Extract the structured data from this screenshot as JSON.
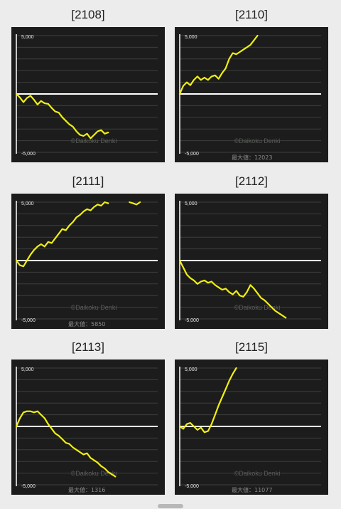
{
  "watermark": "©Daikoku Denki",
  "max_label_prefix": "最大値：",
  "colors": {
    "background": "#1b1c1b",
    "grid": "#3c3f3c",
    "zero_line": "#ffffff",
    "line": "#f1ee13",
    "axis_text": "#e8e8e8"
  },
  "chart_data": [
    {
      "type": "line",
      "title": "[2108]",
      "ylim": [
        -5000,
        5000
      ],
      "yticks": [
        "5,000",
        "-5,000"
      ],
      "max_value": "",
      "series": [
        {
          "x": [
            0,
            5,
            10,
            15,
            20,
            25,
            30,
            35,
            40,
            45,
            50,
            55,
            60,
            65,
            70,
            75,
            80,
            85,
            90,
            95,
            100,
            105,
            110,
            115,
            120,
            125,
            130
          ],
          "values": [
            0,
            -300,
            -700,
            -350,
            -150,
            -500,
            -900,
            -600,
            -800,
            -850,
            -1200,
            -1500,
            -1600,
            -2000,
            -2300,
            -2600,
            -2800,
            -3200,
            -3500,
            -3600,
            -3400,
            -3800,
            -3500,
            -3200,
            -3100,
            -3400,
            -3300
          ]
        }
      ]
    },
    {
      "type": "line",
      "title": "[2110]",
      "ylim": [
        -5000,
        5000
      ],
      "yticks": [
        "5,000",
        "-5,000"
      ],
      "max_value": "12023",
      "series": [
        {
          "x": [
            0,
            5,
            10,
            15,
            20,
            25,
            30,
            35,
            40,
            45,
            50,
            55,
            60,
            65,
            70,
            75,
            80,
            85,
            90,
            95,
            100,
            105,
            110
          ],
          "values": [
            0,
            700,
            1000,
            750,
            1200,
            1500,
            1200,
            1400,
            1200,
            1500,
            1600,
            1300,
            1800,
            2200,
            3000,
            3500,
            3400,
            3600,
            3800,
            4000,
            4200,
            4600,
            5000
          ]
        }
      ]
    },
    {
      "type": "line",
      "title": "[2111]",
      "ylim": [
        -5000,
        5000
      ],
      "yticks": [
        "5,000",
        "-5,000"
      ],
      "max_value": "5850",
      "series": [
        {
          "x": [
            0,
            5,
            10,
            15,
            20,
            25,
            30,
            35,
            40,
            45,
            50,
            55,
            60,
            65,
            70,
            75,
            80,
            85,
            90,
            95,
            100,
            105,
            110,
            115,
            120,
            125,
            130,
            135,
            140
          ],
          "values": [
            0,
            -400,
            -500,
            0,
            500,
            900,
            1200,
            1400,
            1200,
            1600,
            1500,
            1900,
            2300,
            2700,
            2600,
            3000,
            3300,
            3700,
            3900,
            4200,
            4400,
            4300,
            4600,
            4800,
            4700,
            5000,
            4900,
            null,
            null
          ]
        },
        {
          "x": [
            160,
            165,
            170,
            175
          ],
          "values": [
            5000,
            4900,
            4800,
            5000
          ]
        }
      ]
    },
    {
      "type": "line",
      "title": "[2112]",
      "ylim": [
        -5000,
        5000
      ],
      "yticks": [
        "5,000",
        "-5,000"
      ],
      "max_value": "",
      "series": [
        {
          "x": [
            0,
            5,
            10,
            15,
            20,
            25,
            30,
            35,
            40,
            45,
            50,
            55,
            60,
            65,
            70,
            75,
            80,
            85,
            90,
            95,
            100,
            105,
            110,
            115,
            120,
            125,
            130,
            135,
            140,
            145,
            150
          ],
          "values": [
            0,
            -600,
            -1200,
            -1500,
            -1700,
            -2000,
            -1800,
            -1700,
            -1900,
            -1800,
            -2100,
            -2300,
            -2500,
            -2400,
            -2700,
            -2900,
            -2600,
            -3000,
            -3100,
            -2700,
            -2100,
            -2400,
            -2800,
            -3200,
            -3400,
            -3700,
            -4000,
            -4300,
            -4500,
            -4700,
            -4900
          ]
        }
      ]
    },
    {
      "type": "line",
      "title": "[2113]",
      "ylim": [
        -5000,
        5000
      ],
      "yticks": [
        "5,000",
        "-5,000"
      ],
      "max_value": "1316",
      "series": [
        {
          "x": [
            0,
            5,
            10,
            15,
            20,
            25,
            30,
            35,
            40,
            45,
            50,
            55,
            60,
            65,
            70,
            75,
            80,
            85,
            90,
            95,
            100,
            105,
            110,
            115,
            120,
            125,
            130,
            135,
            140
          ],
          "values": [
            0,
            700,
            1200,
            1300,
            1300,
            1200,
            1300,
            1000,
            700,
            200,
            -200,
            -600,
            -800,
            -1100,
            -1400,
            -1500,
            -1800,
            -2000,
            -2200,
            -2400,
            -2300,
            -2700,
            -2900,
            -3100,
            -3400,
            -3600,
            -3900,
            -4100,
            -4300
          ]
        }
      ]
    },
    {
      "type": "line",
      "title": "[2115]",
      "ylim": [
        -5000,
        5000
      ],
      "yticks": [
        "5,000",
        "-5,000"
      ],
      "max_value": "11077",
      "series": [
        {
          "x": [
            0,
            5,
            10,
            15,
            20,
            25,
            30,
            35,
            40,
            45,
            50,
            55,
            60,
            65,
            70,
            75,
            80
          ],
          "values": [
            0,
            -200,
            200,
            300,
            0,
            -300,
            -100,
            -500,
            -400,
            200,
            1000,
            1800,
            2500,
            3200,
            3900,
            4500,
            5000
          ]
        }
      ]
    }
  ]
}
